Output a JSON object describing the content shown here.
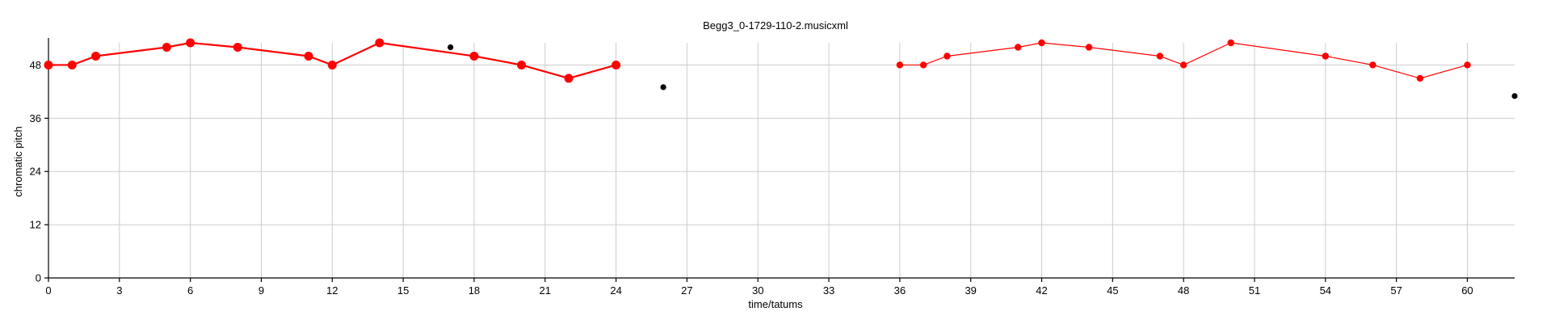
{
  "chart_data": {
    "type": "line",
    "title": "Begg3_0-1729-110-2.musicxml",
    "xlabel": "time/tatums",
    "ylabel": "chromatic pitch",
    "xlim": [
      0,
      62
    ],
    "ylim": [
      0,
      53
    ],
    "x_ticks": [
      0,
      3,
      6,
      9,
      12,
      15,
      18,
      21,
      24,
      27,
      30,
      33,
      36,
      39,
      42,
      45,
      48,
      51,
      54,
      57,
      60
    ],
    "y_ticks": [
      0,
      12,
      24,
      36,
      48
    ],
    "grid": true,
    "colors": {
      "series": "#ff0000",
      "outlier": "#000000",
      "grid": "#cccccc"
    },
    "series": [
      {
        "points": [
          [
            0,
            48
          ],
          [
            1,
            48
          ],
          [
            2,
            50
          ],
          [
            5,
            52
          ],
          [
            6,
            53
          ],
          [
            8,
            52
          ],
          [
            11,
            50
          ],
          [
            12,
            48
          ],
          [
            14,
            53
          ],
          [
            18,
            50
          ],
          [
            20,
            48
          ],
          [
            22,
            45
          ],
          [
            24,
            48
          ]
        ],
        "style": "thick"
      },
      {
        "points": [
          [
            36,
            48
          ],
          [
            37,
            48
          ],
          [
            38,
            50
          ],
          [
            41,
            52
          ],
          [
            42,
            53
          ],
          [
            44,
            52
          ],
          [
            47,
            50
          ],
          [
            48,
            48
          ],
          [
            50,
            53
          ],
          [
            54,
            50
          ],
          [
            56,
            48
          ],
          [
            58,
            45
          ],
          [
            60,
            48
          ]
        ],
        "style": "thin"
      }
    ],
    "outliers": [
      [
        17,
        52
      ],
      [
        26,
        43
      ],
      [
        62,
        41
      ]
    ]
  }
}
